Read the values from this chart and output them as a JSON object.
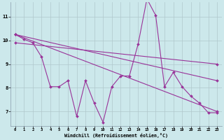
{
  "xlabel": "Windchill (Refroidissement éolien,°C)",
  "background_color": "#cce8eb",
  "line_color": "#993399",
  "grid_color": "#b0c8cc",
  "xlim": [
    -0.5,
    23.5
  ],
  "ylim": [
    6.4,
    11.6
  ],
  "yticks": [
    7,
    8,
    9,
    10,
    11
  ],
  "xticks": [
    0,
    1,
    2,
    3,
    4,
    5,
    6,
    7,
    8,
    9,
    10,
    11,
    12,
    13,
    14,
    15,
    16,
    17,
    18,
    19,
    20,
    21,
    22,
    23
  ],
  "line1_x": [
    0,
    1,
    2,
    3,
    4,
    5,
    6,
    7,
    8,
    9,
    10,
    11,
    12,
    13,
    14,
    15,
    16,
    17,
    18,
    19,
    20,
    21,
    22,
    23
  ],
  "line1_y": [
    10.25,
    10.05,
    9.9,
    9.3,
    8.05,
    8.05,
    8.3,
    6.8,
    8.3,
    7.35,
    6.55,
    8.05,
    8.5,
    8.5,
    9.85,
    11.75,
    11.05,
    8.05,
    8.65,
    8.05,
    7.65,
    7.35,
    6.95,
    6.95
  ],
  "line2_x": [
    0,
    23
  ],
  "line2_y": [
    10.25,
    7.0
  ],
  "line3_x": [
    0,
    23
  ],
  "line3_y": [
    10.25,
    8.3
  ],
  "line4_x": [
    0,
    23
  ],
  "line4_y": [
    9.9,
    9.0
  ]
}
